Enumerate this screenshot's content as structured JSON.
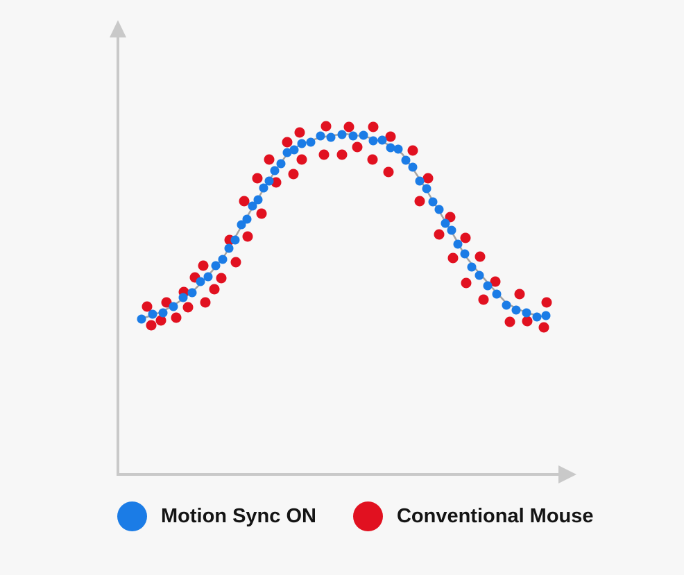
{
  "page": {
    "background": "#f7f7f7"
  },
  "colors": {
    "axis": "#c9c9c9",
    "trend": "#a3a3a3",
    "blue": "#1b7ce6",
    "red": "#e11120",
    "text": "#141414"
  },
  "chart_data": {
    "type": "scatter",
    "title": "",
    "xlabel": "",
    "ylabel": "",
    "coordinate_space": "pixels_y_down",
    "axes": {
      "origin": [
        170,
        684
      ],
      "x_end": [
        831,
        684
      ],
      "y_end": [
        170,
        29
      ],
      "arrows": true,
      "tick_labels": "none",
      "grid": false
    },
    "trend_line": {
      "color": "#a3a3a3",
      "width": 2.5,
      "points": [
        [
          204,
          459
        ],
        [
          219,
          455
        ],
        [
          234,
          449
        ],
        [
          249,
          441
        ],
        [
          264,
          431
        ],
        [
          279,
          419
        ],
        [
          294,
          404
        ],
        [
          309,
          387
        ],
        [
          324,
          368
        ],
        [
          339,
          342
        ],
        [
          354,
          316
        ],
        [
          369,
          291
        ],
        [
          384,
          266
        ],
        [
          399,
          243
        ],
        [
          414,
          222
        ],
        [
          429,
          211
        ],
        [
          444,
          204
        ],
        [
          459,
          199
        ],
        [
          474,
          196
        ],
        [
          489,
          194
        ],
        [
          497,
          193
        ],
        [
          505,
          194
        ],
        [
          520,
          196
        ],
        [
          535,
          199
        ],
        [
          550,
          204
        ],
        [
          565,
          211
        ],
        [
          580,
          222
        ],
        [
          595,
          243
        ],
        [
          610,
          266
        ],
        [
          625,
          291
        ],
        [
          640,
          316
        ],
        [
          655,
          341
        ],
        [
          670,
          368
        ],
        [
          685,
          387
        ],
        [
          700,
          404
        ],
        [
          715,
          421
        ],
        [
          730,
          437
        ],
        [
          745,
          445
        ],
        [
          760,
          451
        ],
        [
          775,
          455
        ],
        [
          788,
          457
        ]
      ]
    },
    "series": [
      {
        "name": "Motion Sync ON",
        "color": "#1b7ce6",
        "dot_radius": 6.5,
        "points": [
          [
            204,
            460
          ],
          [
            220,
            453
          ],
          [
            235,
            451
          ],
          [
            250,
            442
          ],
          [
            264,
            429
          ],
          [
            277,
            422
          ],
          [
            289,
            406
          ],
          [
            300,
            399
          ],
          [
            311,
            383
          ],
          [
            321,
            374
          ],
          [
            330,
            358
          ],
          [
            339,
            346
          ],
          [
            348,
            324
          ],
          [
            356,
            316
          ],
          [
            364,
            297
          ],
          [
            372,
            288
          ],
          [
            380,
            271
          ],
          [
            388,
            261
          ],
          [
            396,
            246
          ],
          [
            405,
            236
          ],
          [
            414,
            220
          ],
          [
            424,
            216
          ],
          [
            435,
            207
          ],
          [
            448,
            205
          ],
          [
            462,
            196
          ],
          [
            477,
            198
          ],
          [
            493,
            194
          ],
          [
            509,
            196
          ],
          [
            524,
            195
          ],
          [
            538,
            203
          ],
          [
            551,
            202
          ],
          [
            563,
            213
          ],
          [
            574,
            215
          ],
          [
            585,
            231
          ],
          [
            595,
            241
          ],
          [
            605,
            261
          ],
          [
            615,
            272
          ],
          [
            624,
            291
          ],
          [
            633,
            302
          ],
          [
            642,
            322
          ],
          [
            651,
            332
          ],
          [
            660,
            352
          ],
          [
            670,
            366
          ],
          [
            680,
            385
          ],
          [
            691,
            397
          ],
          [
            703,
            412
          ],
          [
            716,
            424
          ],
          [
            730,
            440
          ],
          [
            744,
            447
          ],
          [
            759,
            451
          ],
          [
            774,
            457
          ],
          [
            787,
            455
          ]
        ]
      },
      {
        "name": "Conventional Mouse",
        "color": "#e11120",
        "dot_radius": 7.5,
        "points": [
          [
            212,
            442
          ],
          [
            218,
            469
          ],
          [
            232,
            462
          ],
          [
            240,
            436
          ],
          [
            254,
            458
          ],
          [
            265,
            421
          ],
          [
            271,
            443
          ],
          [
            281,
            400
          ],
          [
            293,
            383
          ],
          [
            296,
            436
          ],
          [
            309,
            417
          ],
          [
            319,
            401
          ],
          [
            331,
            346
          ],
          [
            340,
            378
          ],
          [
            352,
            290
          ],
          [
            357,
            341
          ],
          [
            371,
            257
          ],
          [
            377,
            308
          ],
          [
            388,
            230
          ],
          [
            398,
            263
          ],
          [
            414,
            205
          ],
          [
            423,
            251
          ],
          [
            432,
            191
          ],
          [
            435,
            230
          ],
          [
            467,
            223
          ],
          [
            470,
            182
          ],
          [
            493,
            223
          ],
          [
            503,
            183
          ],
          [
            515,
            212
          ],
          [
            537,
            230
          ],
          [
            538,
            183
          ],
          [
            560,
            248
          ],
          [
            563,
            197
          ],
          [
            595,
            217
          ],
          [
            605,
            290
          ],
          [
            617,
            257
          ],
          [
            633,
            338
          ],
          [
            649,
            313
          ],
          [
            653,
            372
          ],
          [
            671,
            343
          ],
          [
            672,
            408
          ],
          [
            692,
            370
          ],
          [
            697,
            432
          ],
          [
            714,
            406
          ],
          [
            735,
            464
          ],
          [
            749,
            424
          ],
          [
            760,
            463
          ],
          [
            784,
            472
          ],
          [
            788,
            436
          ]
        ]
      }
    ]
  },
  "legend": {
    "items": [
      {
        "label": "Motion Sync ON",
        "color": "#1b7ce6"
      },
      {
        "label": "Conventional Mouse",
        "color": "#e11120"
      }
    ]
  }
}
